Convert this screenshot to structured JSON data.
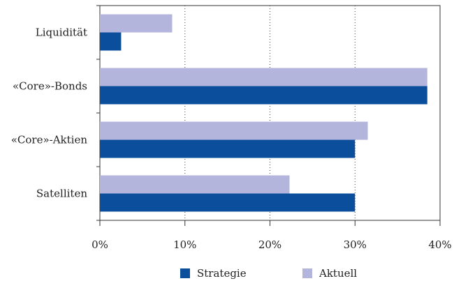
{
  "chart_data": {
    "type": "bar",
    "orientation": "horizontal",
    "categories": [
      "Liquidität",
      "«Core»-Bonds",
      "«Core»-Aktien",
      "Satelliten"
    ],
    "series": [
      {
        "name": "Strategie",
        "values": [
          2.5,
          38.5,
          30,
          30
        ],
        "color": "#0b4f9c"
      },
      {
        "name": "Aktuell",
        "values": [
          8.5,
          38.5,
          31.5,
          22.3
        ],
        "color": "#b3b5dc"
      }
    ],
    "xlim": [
      0,
      40
    ],
    "xticks": [
      0,
      10,
      20,
      30,
      40
    ],
    "xtick_labels": [
      "0%",
      "10%",
      "20%",
      "30%",
      "40%"
    ],
    "grid": "vertical-dotted",
    "legend_position": "bottom-center",
    "title": "",
    "xlabel": "",
    "ylabel": ""
  }
}
